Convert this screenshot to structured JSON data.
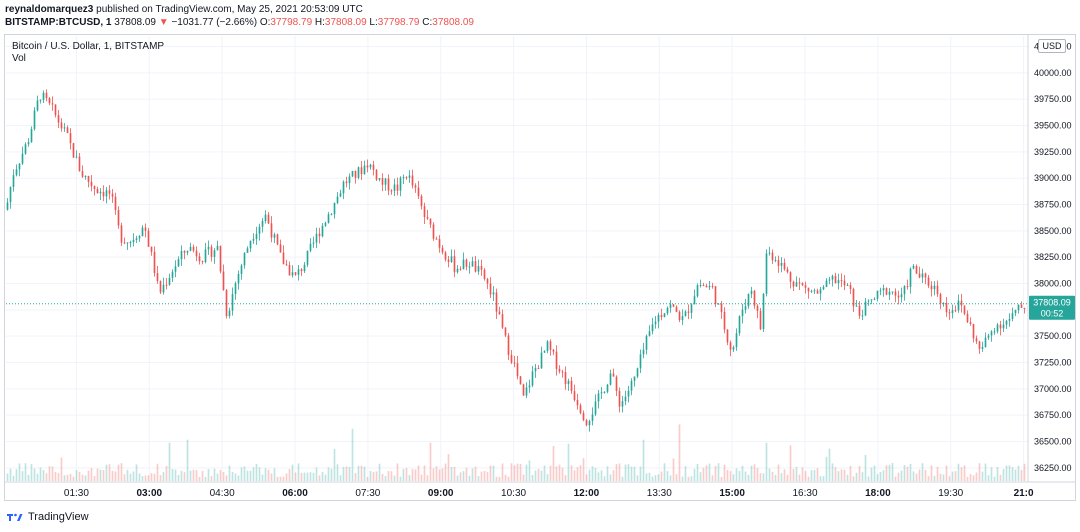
{
  "header": {
    "publisher": "reynaldomarquez3",
    "published_text": "published on TradingView.com, May 25, 2021 20:53:09 UTC",
    "symbol": "BITSTAMP:BTCUSD, 1",
    "last": "37808.09",
    "change_arrow": "▼",
    "change": "−1031.77 (−2.66%)",
    "o_label": "O:",
    "o_value": "37798.79",
    "h_label": "H:",
    "h_value": "37808.09",
    "l_label": "L:",
    "l_value": "37798.79",
    "c_label": "C:",
    "c_value": "37808.09"
  },
  "legend": {
    "title": "Bitcoin / U.S. Dollar, 1, BITSTAMP",
    "volume": "Vol"
  },
  "currency_button": "USD",
  "footer": {
    "brand": "TradingView",
    "logo_icon": "tradingview-logo-icon"
  },
  "colors": {
    "up": "#26a69a",
    "down": "#ef5350",
    "grid": "#f0f3fa",
    "axis_text": "#131722",
    "price_line": "#26a69a"
  },
  "chart_data": {
    "type": "candlestick",
    "title": "Bitcoin / U.S. Dollar, 1, BITSTAMP",
    "y_axis_side": "right",
    "ylim": [
      36125,
      40350
    ],
    "y_ticks": [
      "36250.00",
      "36500.00",
      "36750.00",
      "37000.00",
      "37250.00",
      "37500.00",
      "37750.00",
      "38000.00",
      "38250.00",
      "38500.00",
      "38750.00",
      "39000.00",
      "39250.00",
      "39500.00",
      "39750.00",
      "40000.00",
      "40250.00"
    ],
    "y_tick_values": [
      36250,
      36500,
      36750,
      37000,
      37250,
      37500,
      37750,
      38000,
      38250,
      38500,
      38750,
      39000,
      39250,
      39500,
      39750,
      40000,
      40250
    ],
    "x_ticks": [
      {
        "label": "01:30",
        "hour": 1.5,
        "bold": false
      },
      {
        "label": "03:00",
        "hour": 3.0,
        "bold": true
      },
      {
        "label": "04:30",
        "hour": 4.5,
        "bold": false
      },
      {
        "label": "06:00",
        "hour": 6.0,
        "bold": true
      },
      {
        "label": "07:30",
        "hour": 7.5,
        "bold": false
      },
      {
        "label": "09:00",
        "hour": 9.0,
        "bold": true
      },
      {
        "label": "10:30",
        "hour": 10.5,
        "bold": false
      },
      {
        "label": "12:00",
        "hour": 12.0,
        "bold": true
      },
      {
        "label": "13:30",
        "hour": 13.5,
        "bold": false
      },
      {
        "label": "15:00",
        "hour": 15.0,
        "bold": true
      },
      {
        "label": "16:30",
        "hour": 16.5,
        "bold": false
      },
      {
        "label": "18:00",
        "hour": 18.0,
        "bold": true
      },
      {
        "label": "19:30",
        "hour": 19.5,
        "bold": false
      },
      {
        "label": "21:0",
        "hour": 21.0,
        "bold": true
      }
    ],
    "x_range_hours": [
      0.05,
      21.05
    ],
    "last_price": 37808.09,
    "last_price_label": "37808.09",
    "countdown_label": "00:52",
    "grid": true,
    "candle_count": 340,
    "price_path": [
      {
        "hour": 0.05,
        "price": 38700
      },
      {
        "hour": 0.2,
        "price": 39050
      },
      {
        "hour": 0.5,
        "price": 39350
      },
      {
        "hour": 0.75,
        "price": 39800
      },
      {
        "hour": 1.0,
        "price": 39650
      },
      {
        "hour": 1.3,
        "price": 39400
      },
      {
        "hour": 1.6,
        "price": 39050
      },
      {
        "hour": 1.9,
        "price": 38900
      },
      {
        "hour": 2.2,
        "price": 38850
      },
      {
        "hour": 2.4,
        "price": 38450
      },
      {
        "hour": 2.6,
        "price": 38400
      },
      {
        "hour": 2.9,
        "price": 38550
      },
      {
        "hour": 3.1,
        "price": 38150
      },
      {
        "hour": 3.2,
        "price": 37900
      },
      {
        "hour": 3.5,
        "price": 38150
      },
      {
        "hour": 3.8,
        "price": 38350
      },
      {
        "hour": 4.1,
        "price": 38250
      },
      {
        "hour": 4.4,
        "price": 38350
      },
      {
        "hour": 4.6,
        "price": 37700
      },
      {
        "hour": 4.8,
        "price": 38050
      },
      {
        "hour": 5.1,
        "price": 38450
      },
      {
        "hour": 5.4,
        "price": 38650
      },
      {
        "hour": 5.7,
        "price": 38250
      },
      {
        "hour": 6.0,
        "price": 38050
      },
      {
        "hour": 6.2,
        "price": 38200
      },
      {
        "hour": 6.5,
        "price": 38500
      },
      {
        "hour": 6.8,
        "price": 38750
      },
      {
        "hour": 7.0,
        "price": 38950
      },
      {
        "hour": 7.3,
        "price": 39050
      },
      {
        "hour": 7.5,
        "price": 39150
      },
      {
        "hour": 7.8,
        "price": 38950
      },
      {
        "hour": 8.1,
        "price": 38900
      },
      {
        "hour": 8.3,
        "price": 39050
      },
      {
        "hour": 8.5,
        "price": 38850
      },
      {
        "hour": 8.7,
        "price": 38600
      },
      {
        "hour": 9.0,
        "price": 38350
      },
      {
        "hour": 9.3,
        "price": 38150
      },
      {
        "hour": 9.6,
        "price": 38200
      },
      {
        "hour": 9.9,
        "price": 38050
      },
      {
        "hour": 10.1,
        "price": 37850
      },
      {
        "hour": 10.3,
        "price": 37500
      },
      {
        "hour": 10.5,
        "price": 37250
      },
      {
        "hour": 10.7,
        "price": 36900
      },
      {
        "hour": 10.9,
        "price": 37150
      },
      {
        "hour": 11.2,
        "price": 37400
      },
      {
        "hour": 11.5,
        "price": 37150
      },
      {
        "hour": 11.8,
        "price": 36900
      },
      {
        "hour": 12.0,
        "price": 36700
      },
      {
        "hour": 12.2,
        "price": 36850
      },
      {
        "hour": 12.5,
        "price": 37150
      },
      {
        "hour": 12.7,
        "price": 36850
      },
      {
        "hour": 13.0,
        "price": 37100
      },
      {
        "hour": 13.2,
        "price": 37400
      },
      {
        "hour": 13.4,
        "price": 37650
      },
      {
        "hour": 13.7,
        "price": 37800
      },
      {
        "hour": 14.0,
        "price": 37650
      },
      {
        "hour": 14.3,
        "price": 38000
      },
      {
        "hour": 14.6,
        "price": 37950
      },
      {
        "hour": 14.8,
        "price": 37650
      },
      {
        "hour": 15.0,
        "price": 37350
      },
      {
        "hour": 15.2,
        "price": 37750
      },
      {
        "hour": 15.4,
        "price": 37950
      },
      {
        "hour": 15.6,
        "price": 37550
      },
      {
        "hour": 15.7,
        "price": 38300
      },
      {
        "hour": 15.9,
        "price": 38250
      },
      {
        "hour": 16.2,
        "price": 38050
      },
      {
        "hour": 16.5,
        "price": 37950
      },
      {
        "hour": 16.8,
        "price": 37900
      },
      {
        "hour": 17.1,
        "price": 38050
      },
      {
        "hour": 17.4,
        "price": 37950
      },
      {
        "hour": 17.6,
        "price": 37700
      },
      {
        "hour": 17.9,
        "price": 37850
      },
      {
        "hour": 18.2,
        "price": 37950
      },
      {
        "hour": 18.5,
        "price": 37850
      },
      {
        "hour": 18.7,
        "price": 38150
      },
      {
        "hour": 18.9,
        "price": 38050
      },
      {
        "hour": 19.2,
        "price": 37950
      },
      {
        "hour": 19.4,
        "price": 37750
      },
      {
        "hour": 19.7,
        "price": 37800
      },
      {
        "hour": 19.9,
        "price": 37600
      },
      {
        "hour": 20.1,
        "price": 37350
      },
      {
        "hour": 20.4,
        "price": 37600
      },
      {
        "hour": 20.7,
        "price": 37650
      },
      {
        "hour": 20.9,
        "price": 37750
      },
      {
        "hour": 21.05,
        "price": 37808
      }
    ]
  }
}
